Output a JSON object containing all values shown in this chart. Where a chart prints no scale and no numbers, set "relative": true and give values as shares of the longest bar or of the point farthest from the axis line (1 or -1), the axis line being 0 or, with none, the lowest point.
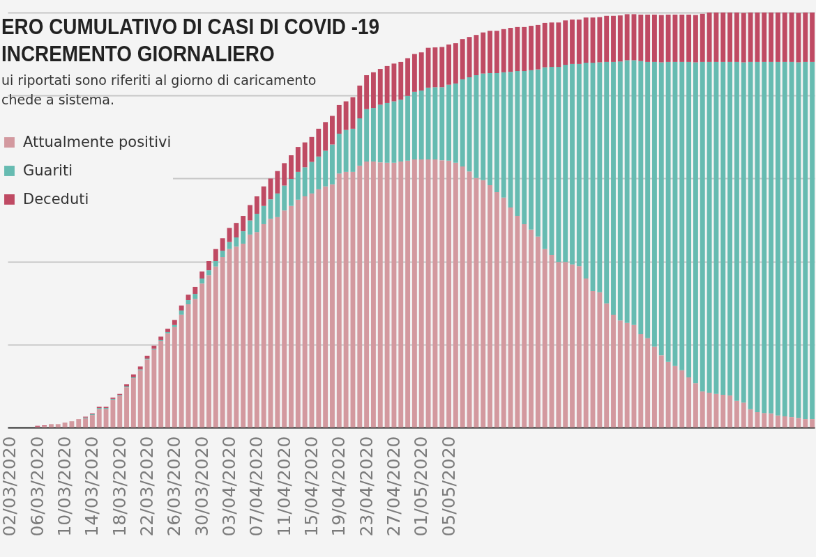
{
  "chart_data": {
    "type": "bar",
    "title": "ERO CUMULATIVO DI CASI DI COVID -19\nINCREMENTO GIORNALIERO",
    "subtitle": "ui riportati sono riferiti al giorno di caricamento\nchede a sistema.",
    "stacked": true,
    "relative": true,
    "grid": "y",
    "legend": "top left",
    "categories": [
      "02/03/2020",
      null,
      null,
      null,
      "06/03/2020",
      null,
      null,
      null,
      "10/03/2020",
      null,
      null,
      null,
      "14/03/2020",
      null,
      null,
      null,
      "18/03/2020",
      null,
      null,
      null,
      "22/03/2020",
      null,
      null,
      null,
      "26/03/2020",
      null,
      null,
      null,
      "30/03/2020",
      null,
      null,
      null,
      "03/04/2020",
      null,
      null,
      null,
      "07/04/2020",
      null,
      null,
      null,
      "11/04/2020",
      null,
      null,
      null,
      "15/04/2020",
      null,
      null,
      null,
      "19/04/2020",
      null,
      null,
      null,
      "23/04/2020",
      null,
      null,
      null,
      "27/04/2020",
      null,
      null,
      null,
      "01/05/2020",
      null,
      null,
      null,
      "05/05/2020",
      null,
      null,
      null,
      null,
      null,
      null,
      null,
      null,
      null,
      null,
      null,
      null,
      null,
      null,
      null,
      null,
      null,
      null,
      null,
      null,
      null,
      null,
      null,
      null,
      null,
      null,
      null,
      null,
      null,
      null,
      null,
      null,
      null,
      null,
      null,
      null,
      null,
      null,
      null,
      null,
      null,
      null,
      null,
      null,
      null,
      null,
      null,
      null,
      null,
      null,
      null,
      null,
      null
    ],
    "series": [
      {
        "name": "Attualmente positivi",
        "color": "#d3999f",
        "values": [
          null,
          null,
          null,
          null,
          0.002,
          0.003,
          0.008,
          0.008,
          0.012,
          0.015,
          0.02,
          0.022,
          0.03,
          0.045,
          0.045,
          0.067,
          0.076,
          0.097,
          0.119,
          0.138,
          0.164,
          0.188,
          0.208,
          0.227,
          0.242,
          0.272,
          0.297,
          0.31,
          0.347,
          0.367,
          0.388,
          0.411,
          0.43,
          0.436,
          0.443,
          0.465,
          0.471,
          0.49,
          0.503,
          0.507,
          0.523,
          0.534,
          0.549,
          0.557,
          0.564,
          0.574,
          0.581,
          0.586,
          0.612,
          0.616,
          0.616,
          0.631,
          0.641,
          0.641,
          0.639,
          0.638,
          0.638,
          0.641,
          0.643,
          0.646,
          0.646,
          0.646,
          0.646,
          0.644,
          0.643,
          0.638,
          0.629,
          0.617,
          0.601,
          0.596,
          0.584,
          0.567,
          0.554,
          0.53,
          0.51,
          0.49,
          0.477,
          0.46,
          0.43,
          0.416,
          0.399,
          0.399,
          0.393,
          0.389,
          0.359,
          0.329,
          0.326,
          0.299,
          0.272,
          0.258,
          0.252,
          0.247,
          0.225,
          0.215,
          0.195,
          0.174,
          0.158,
          0.148,
          0.138,
          0.121,
          0.107,
          0.087,
          0.084,
          0.081,
          0.079,
          0.077,
          0.064,
          0.06,
          0.044,
          0.037,
          0.035,
          0.034,
          0.029,
          0.027,
          0.025,
          0.023,
          0.02,
          0.02
        ]
      },
      {
        "name": "Guariti",
        "color": "#66bbb1",
        "values": [
          null,
          null,
          null,
          null,
          null,
          null,
          null,
          null,
          null,
          null,
          null,
          0.002,
          0.002,
          0.002,
          0.002,
          0.002,
          0.002,
          0.002,
          0.002,
          0.002,
          0.002,
          0.002,
          0.003,
          0.003,
          0.005,
          0.01,
          0.01,
          0.012,
          0.012,
          0.012,
          0.013,
          0.015,
          0.017,
          0.022,
          0.03,
          0.034,
          0.044,
          0.044,
          0.047,
          0.057,
          0.06,
          0.065,
          0.067,
          0.07,
          0.076,
          0.079,
          0.086,
          0.096,
          0.096,
          0.101,
          0.104,
          0.114,
          0.126,
          0.129,
          0.139,
          0.144,
          0.148,
          0.149,
          0.156,
          0.163,
          0.166,
          0.173,
          0.174,
          0.176,
          0.183,
          0.191,
          0.21,
          0.227,
          0.248,
          0.257,
          0.27,
          0.287,
          0.302,
          0.327,
          0.349,
          0.369,
          0.384,
          0.403,
          0.438,
          0.453,
          0.47,
          0.475,
          0.483,
          0.487,
          0.52,
          0.55,
          0.554,
          0.582,
          0.609,
          0.624,
          0.633,
          0.638,
          0.658,
          0.666,
          0.686,
          0.706,
          0.723,
          0.733,
          0.743,
          0.76,
          0.773,
          0.794,
          0.797,
          0.8,
          0.802,
          0.804,
          0.817,
          0.82,
          0.837,
          0.844,
          0.846,
          0.847,
          0.852,
          0.854,
          0.856,
          0.857,
          0.861,
          0.861
        ]
      },
      {
        "name": "Deceduti",
        "color": "#bf4a63",
        "values": [
          null,
          null,
          null,
          null,
          0.002,
          0.002,
          null,
          null,
          null,
          null,
          null,
          0.002,
          0.002,
          0.003,
          0.003,
          0.003,
          0.003,
          0.005,
          0.007,
          0.007,
          0.007,
          0.007,
          0.008,
          0.008,
          0.012,
          0.012,
          0.013,
          0.017,
          0.017,
          0.022,
          0.029,
          0.03,
          0.034,
          0.035,
          0.037,
          0.037,
          0.042,
          0.047,
          0.05,
          0.054,
          0.054,
          0.057,
          0.06,
          0.06,
          0.06,
          0.067,
          0.069,
          0.069,
          0.069,
          0.069,
          0.076,
          0.079,
          0.082,
          0.086,
          0.086,
          0.089,
          0.091,
          0.091,
          0.091,
          0.091,
          0.092,
          0.096,
          0.096,
          0.097,
          0.097,
          0.097,
          0.097,
          0.097,
          0.097,
          0.099,
          0.102,
          0.102,
          0.104,
          0.106,
          0.106,
          0.106,
          0.107,
          0.107,
          0.107,
          0.107,
          0.107,
          0.107,
          0.107,
          0.107,
          0.109,
          0.109,
          0.109,
          0.111,
          0.111,
          0.111,
          0.111,
          0.111,
          0.112,
          0.114,
          0.114,
          0.114,
          0.114,
          0.114,
          0.114,
          0.114,
          0.114,
          0.116,
          0.119,
          0.119,
          0.119,
          0.119,
          0.119,
          0.119,
          0.119,
          0.119,
          0.119,
          0.119,
          0.119,
          0.119,
          0.119,
          0.119,
          0.119,
          0.119
        ]
      }
    ]
  }
}
